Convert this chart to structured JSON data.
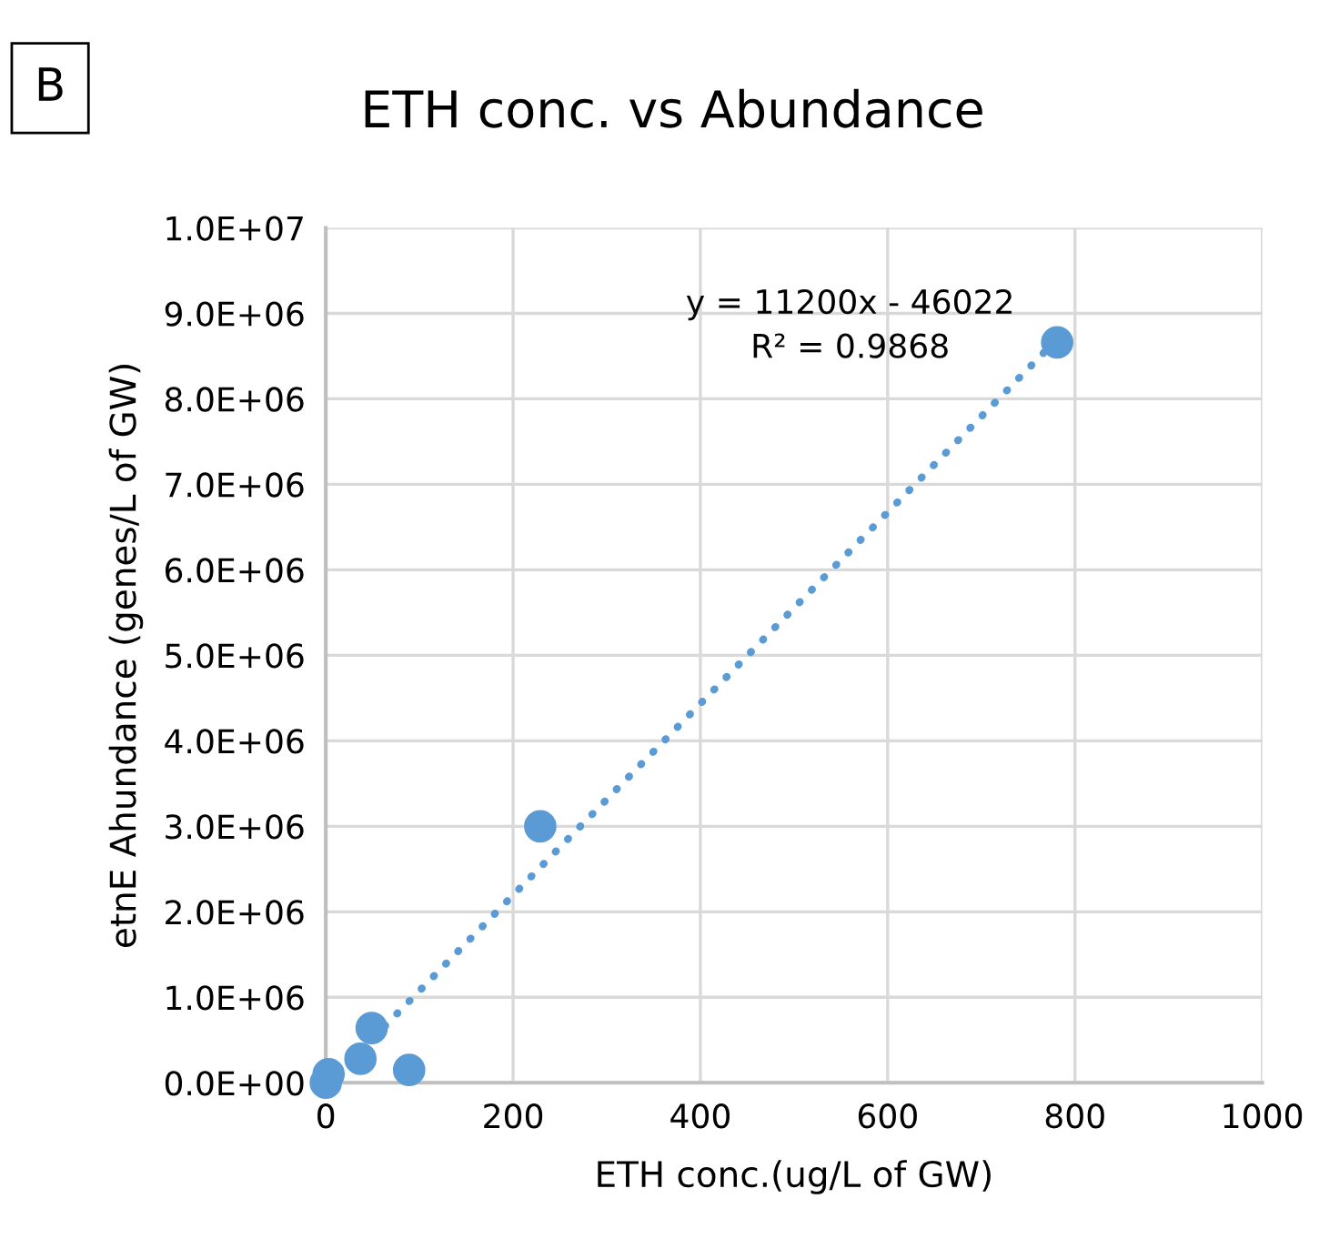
{
  "chart_data": {
    "type": "scatter",
    "title": "ETH conc. vs Abundance",
    "xlabel": "ETH conc.(ug/L of GW)",
    "ylabel": "etnE Ahundance (genes/L of GW)",
    "series": [
      {
        "color": "#5b9bd5",
        "marker": "circle",
        "x": [
          0,
          3,
          37,
          49,
          89,
          229,
          781
        ],
        "values": [
          0,
          100000,
          280000,
          640000,
          150000,
          3000000,
          8660000
        ]
      },
      {
        "type": "line",
        "color": "#5b9bd5",
        "line_style": "dotted",
        "marker": "none",
        "x": [
          37,
          781
        ],
        "values": [
          370000,
          8700000
        ]
      }
    ],
    "xlim": [
      0,
      1000
    ],
    "xticks": [
      0,
      200,
      400,
      600,
      800,
      1000
    ],
    "ylim": [
      0,
      10000000
    ],
    "yticks": [
      {
        "value": 0,
        "label": "0.0E+00"
      },
      {
        "value": 1000000,
        "label": "1.0E+06"
      },
      {
        "value": 2000000,
        "label": "2.0E+06"
      },
      {
        "value": 3000000,
        "label": "3.0E+06"
      },
      {
        "value": 4000000,
        "label": "4.0E+06"
      },
      {
        "value": 5000000,
        "label": "5.0E+06"
      },
      {
        "value": 6000000,
        "label": "6.0E+06"
      },
      {
        "value": 7000000,
        "label": "7.0E+06"
      },
      {
        "value": 8000000,
        "label": "8.0E+06"
      },
      {
        "value": 9000000,
        "label": "9.0E+06"
      },
      {
        "value": 10000000,
        "label": "1.0E+07"
      }
    ],
    "grid": true,
    "annotations": [
      "B",
      "y = 11200x - 46022\nR² = 0.9868"
    ]
  }
}
